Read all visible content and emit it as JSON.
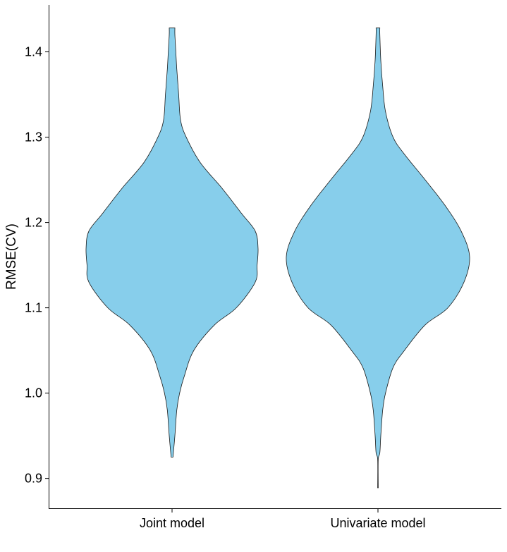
{
  "chart_data": {
    "type": "violin",
    "title": "",
    "xlabel": "",
    "ylabel": "RMSE(CV)",
    "ylim": [
      0.865,
      1.455
    ],
    "yticks": [
      "0.9",
      "1.0",
      "1.1",
      "1.2",
      "1.3",
      "1.4"
    ],
    "categories": [
      "Joint model",
      "Univariate model"
    ],
    "fill_color": "#87CEEB",
    "grid": false,
    "legend": "none",
    "series": [
      {
        "category": "Joint model",
        "min": 0.925,
        "max": 1.428,
        "density": [
          [
            0.925,
            0.01
          ],
          [
            0.95,
            0.03
          ],
          [
            0.98,
            0.05
          ],
          [
            1.0,
            0.08
          ],
          [
            1.02,
            0.13
          ],
          [
            1.05,
            0.23
          ],
          [
            1.08,
            0.45
          ],
          [
            1.1,
            0.68
          ],
          [
            1.13,
            0.88
          ],
          [
            1.15,
            0.9
          ],
          [
            1.17,
            0.91
          ],
          [
            1.19,
            0.88
          ],
          [
            1.21,
            0.74
          ],
          [
            1.24,
            0.53
          ],
          [
            1.27,
            0.3
          ],
          [
            1.3,
            0.15
          ],
          [
            1.32,
            0.09
          ],
          [
            1.35,
            0.07
          ],
          [
            1.38,
            0.05
          ],
          [
            1.4,
            0.04
          ],
          [
            1.42,
            0.03
          ],
          [
            1.428,
            0.03
          ]
        ]
      },
      {
        "category": "Univariate model",
        "min": 0.889,
        "max": 1.428,
        "density": [
          [
            0.889,
            0.003
          ],
          [
            0.922,
            0.003
          ],
          [
            0.93,
            0.02
          ],
          [
            0.95,
            0.03
          ],
          [
            0.98,
            0.05
          ],
          [
            1.0,
            0.08
          ],
          [
            1.03,
            0.16
          ],
          [
            1.05,
            0.28
          ],
          [
            1.08,
            0.5
          ],
          [
            1.1,
            0.74
          ],
          [
            1.13,
            0.91
          ],
          [
            1.16,
            0.97
          ],
          [
            1.19,
            0.88
          ],
          [
            1.22,
            0.71
          ],
          [
            1.25,
            0.5
          ],
          [
            1.28,
            0.28
          ],
          [
            1.3,
            0.16
          ],
          [
            1.33,
            0.08
          ],
          [
            1.36,
            0.05
          ],
          [
            1.39,
            0.03
          ],
          [
            1.42,
            0.02
          ],
          [
            1.428,
            0.02
          ]
        ]
      }
    ]
  }
}
